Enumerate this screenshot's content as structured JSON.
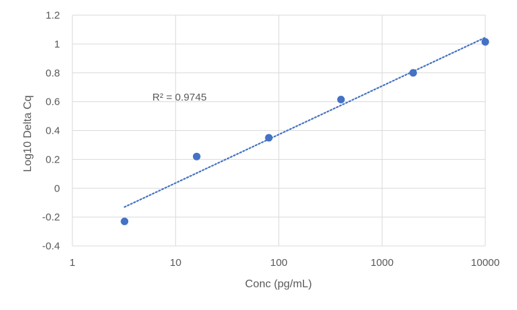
{
  "chart_data": {
    "type": "scatter",
    "xlabel": "Conc (pg/mL)",
    "ylabel": "Log10 Delta Cq",
    "x_scale": "log",
    "xlim": [
      1,
      10000
    ],
    "ylim": [
      -0.4,
      1.2
    ],
    "x_ticks": [
      1,
      10,
      100,
      1000,
      10000
    ],
    "x_tick_labels": [
      "1",
      "10",
      "100",
      "1000",
      "10000"
    ],
    "y_ticks": [
      -0.4,
      -0.2,
      0,
      0.2,
      0.4,
      0.6,
      0.8,
      1,
      1.2
    ],
    "y_tick_labels": [
      "-0.4",
      "-0.2",
      "0",
      "0.2",
      "0.4",
      "0.6",
      "0.8",
      "1",
      "1.2"
    ],
    "grid": true,
    "series": [
      {
        "x": [
          3.2,
          16,
          80,
          400,
          2000,
          10000
        ],
        "y": [
          -0.23,
          0.22,
          0.35,
          0.615,
          0.8,
          1.015
        ],
        "color": "#4472C4"
      }
    ],
    "trendline": {
      "x": [
        3.2,
        10000
      ],
      "y": [
        -0.13,
        1.045
      ],
      "style": "dotted",
      "color": "#4472C4"
    },
    "annotations": [
      "R² = 0.9745"
    ]
  }
}
